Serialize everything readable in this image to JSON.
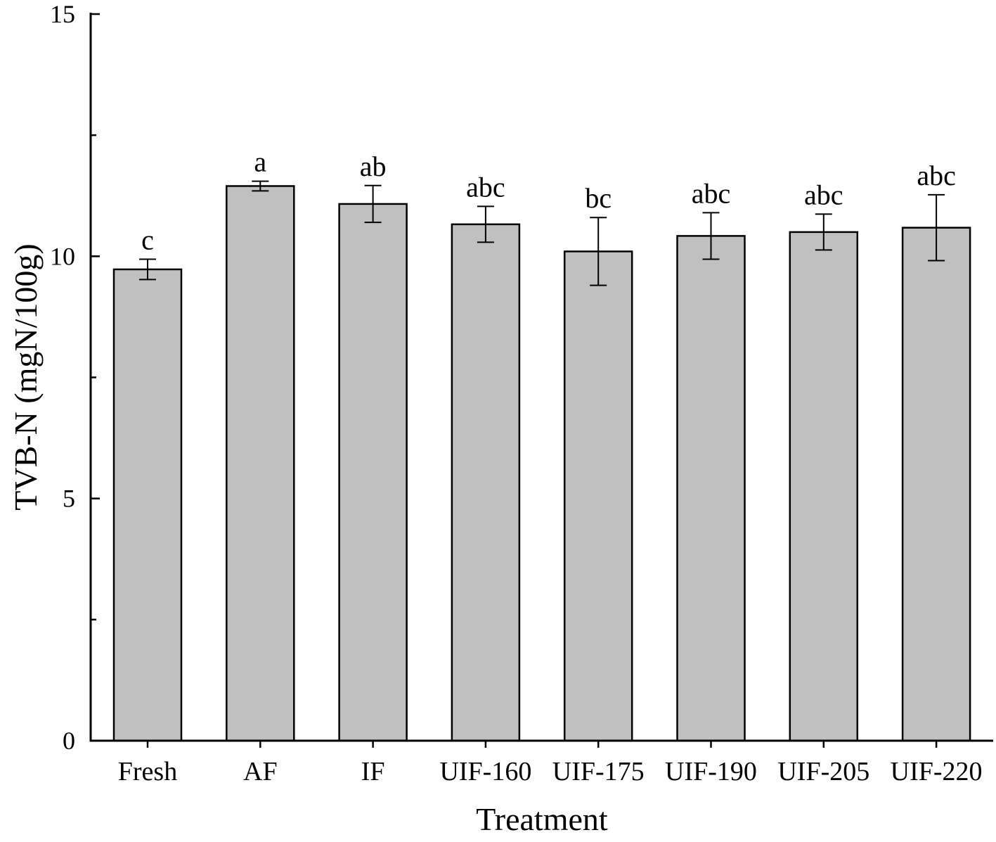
{
  "chart_data": {
    "type": "bar",
    "title": "",
    "xlabel": "Treatment",
    "ylabel": "TVB-N (mgN/100g)",
    "ylim": [
      0,
      15
    ],
    "yticks": [
      0,
      5,
      10,
      15
    ],
    "grid": false,
    "categories": [
      "Fresh",
      "AF",
      "IF",
      "UIF-160",
      "UIF-175",
      "UIF-190",
      "UIF-205",
      "UIF-220"
    ],
    "values": [
      9.73,
      11.45,
      11.08,
      10.66,
      10.1,
      10.42,
      10.5,
      10.59
    ],
    "errors": [
      0.21,
      0.1,
      0.38,
      0.37,
      0.7,
      0.48,
      0.37,
      0.68
    ],
    "significance": [
      "c",
      "a",
      "ab",
      "abc",
      "bc",
      "abc",
      "abc",
      "abc"
    ],
    "bar_color": "#c0c0c0",
    "edge_color": "#000000"
  }
}
